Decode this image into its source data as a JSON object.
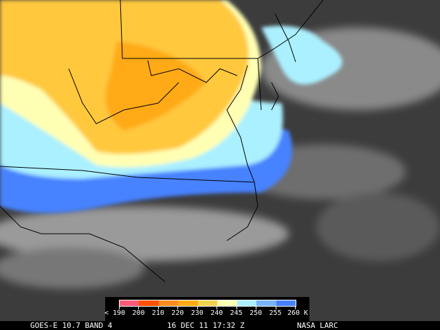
{
  "footer": {
    "satellite": "GOES-E 10.7 BAND 4",
    "datetime": "16 DEC 11 17:32 Z",
    "source": "NASA LARC"
  },
  "legend": {
    "colors": [
      "#ff5a78",
      "#ff5000",
      "#ff8c1e",
      "#ffaa14",
      "#f0d250",
      "#ffffb4",
      "#aaf0ff",
      "#78b4ff",
      "#4682ff"
    ],
    "labels": [
      "< 190",
      "200",
      "210",
      "220",
      "230",
      "240",
      "245",
      "250",
      "255",
      "260 K"
    ]
  },
  "palette": {
    "cloud_yellow": "#ffc83c",
    "cloud_orange": "#ffaa14",
    "cloud_blue": "#4682ff",
    "cloud_lightblue": "#aaf0ff",
    "ground": "#3c3c3c",
    "border": "#000000"
  }
}
